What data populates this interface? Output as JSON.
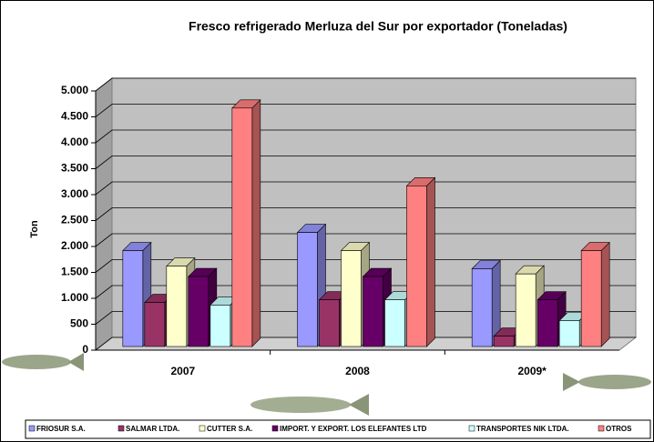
{
  "chart_data": {
    "type": "bar3d",
    "title": "Fresco refrigerado Merluza del Sur por exportador (Toneladas)",
    "ylabel": "Ton",
    "categories": [
      "2007",
      "2008",
      "2009*"
    ],
    "series": [
      {
        "name": "FRIOSUR S.A.",
        "color": "#9999ff",
        "values": [
          1850,
          2200,
          1500
        ]
      },
      {
        "name": "SALMAR LTDA.",
        "color": "#993366",
        "values": [
          850,
          900,
          200
        ]
      },
      {
        "name": "CUTTER S.A.",
        "color": "#ffffcc",
        "values": [
          1550,
          1850,
          1400
        ]
      },
      {
        "name": "IMPORT. Y EXPORT. LOS ELEFANTES LTD",
        "color": "#660066",
        "values": [
          1350,
          1350,
          900
        ]
      },
      {
        "name": "TRANSPORTES NIK LTDA.",
        "color": "#ccffff",
        "values": [
          800,
          900,
          500
        ]
      },
      {
        "name": "OTROS",
        "color": "#ff8080",
        "values": [
          4600,
          3100,
          1850
        ]
      }
    ],
    "ylim": [
      0,
      5000
    ],
    "yticks": [
      0,
      {
        "value": 500,
        "label": "500"
      },
      {
        "value": 1000,
        "label": "1.000"
      },
      {
        "value": 1500,
        "label": "1.500"
      },
      {
        "value": 2000,
        "label": "2.000"
      },
      {
        "value": 2500,
        "label": "2.500"
      },
      {
        "value": 3000,
        "label": "3.000"
      },
      {
        "value": 3500,
        "label": "3.500"
      },
      {
        "value": 4000,
        "label": "4.000"
      },
      {
        "value": 4500,
        "label": "4.500"
      },
      {
        "value": 5000,
        "label": "5.000"
      }
    ],
    "grid": true
  }
}
